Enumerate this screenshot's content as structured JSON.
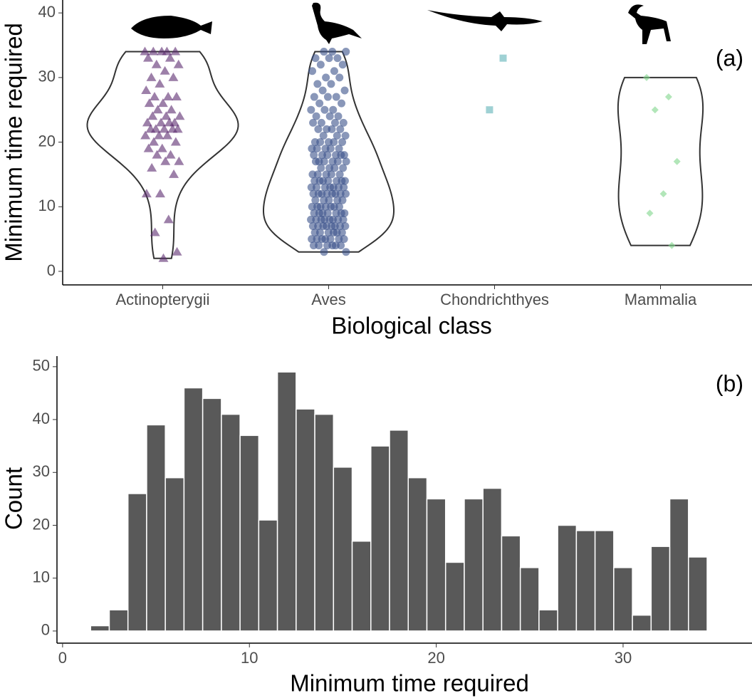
{
  "chart_data": [
    {
      "type": "violin-jitter",
      "x_label": "Biological class",
      "y_label": "Minimum time required",
      "annotation": "(a)",
      "categories": [
        "Actinopterygii",
        "Aves",
        "Chondrichthyes",
        "Mammalia"
      ],
      "ylim": [
        -2.1,
        42
      ],
      "yticks": [
        0,
        10,
        20,
        30,
        40
      ],
      "series": [
        {
          "name": "Actinopterygii",
          "color": "#5b2c6f",
          "marker": "triangle",
          "values": [
            34,
            34,
            34,
            34,
            34,
            33,
            33,
            32,
            32,
            31,
            30,
            30,
            29,
            28,
            27,
            27,
            27,
            26,
            26,
            25,
            25,
            24,
            24,
            24,
            23,
            23,
            23,
            23,
            22,
            22,
            22,
            22,
            22,
            21,
            21,
            21,
            20,
            20,
            19,
            19,
            18,
            18,
            17,
            17,
            16,
            15,
            12,
            12,
            8,
            6,
            3,
            2
          ]
        },
        {
          "name": "Aves",
          "color": "#3b528b",
          "marker": "circle",
          "values": [
            3,
            3,
            4,
            4,
            4,
            4,
            4,
            4,
            5,
            5,
            5,
            5,
            5,
            5,
            5,
            6,
            6,
            6,
            6,
            6,
            6,
            7,
            7,
            7,
            7,
            7,
            7,
            7,
            7,
            8,
            8,
            8,
            8,
            8,
            8,
            8,
            8,
            9,
            9,
            9,
            9,
            9,
            9,
            9,
            10,
            10,
            10,
            10,
            10,
            10,
            10,
            11,
            11,
            11,
            11,
            11,
            12,
            12,
            12,
            12,
            12,
            12,
            12,
            12,
            13,
            13,
            13,
            13,
            13,
            13,
            13,
            14,
            14,
            14,
            14,
            14,
            14,
            14,
            15,
            15,
            15,
            15,
            15,
            16,
            16,
            16,
            16,
            17,
            17,
            17,
            17,
            17,
            17,
            18,
            18,
            18,
            18,
            18,
            18,
            19,
            19,
            19,
            19,
            19,
            20,
            20,
            20,
            20,
            20,
            21,
            21,
            21,
            22,
            22,
            22,
            22,
            23,
            23,
            23,
            23,
            24,
            24,
            24,
            25,
            25,
            25,
            26,
            26,
            27,
            27,
            27,
            28,
            28,
            29,
            29,
            30,
            30,
            31,
            31,
            32,
            32,
            33,
            33,
            33,
            34,
            34,
            34
          ]
        },
        {
          "name": "Chondrichthyes",
          "color": "#5fb3b8",
          "marker": "square",
          "values": [
            33,
            25
          ]
        },
        {
          "name": "Mammalia",
          "color": "#7fd68a",
          "marker": "diamond",
          "values": [
            30,
            27,
            25,
            17,
            12,
            9,
            4
          ]
        }
      ]
    },
    {
      "type": "histogram",
      "x_label": "Minimum time required",
      "y_label": "Count",
      "annotation": "(b)",
      "color": "#595959",
      "bins": [
        1.5,
        2.5,
        3.5,
        4.5,
        5.5,
        6.5,
        7.5,
        8.5,
        9.5,
        10.5,
        11.5,
        12.5,
        13.5,
        14.5,
        15.5,
        16.5,
        17.5,
        18.5,
        19.5,
        20.5,
        21.5,
        22.5,
        23.5,
        24.5,
        25.5,
        26.5,
        27.5,
        28.5,
        29.5,
        30.5,
        31.5,
        32.5,
        33.5,
        34.5
      ],
      "counts": [
        1,
        4,
        26,
        39,
        29,
        46,
        44,
        41,
        37,
        21,
        49,
        42,
        41,
        31,
        17,
        35,
        38,
        29,
        25,
        13,
        25,
        27,
        18,
        12,
        4,
        20,
        19,
        19,
        12,
        3,
        16,
        25,
        14
      ],
      "xlim": [
        -0.3,
        36.9
      ],
      "ylim": [
        -2.3,
        52
      ],
      "xticks": [
        0,
        10,
        20,
        30
      ],
      "yticks": [
        0,
        10,
        20,
        30,
        40,
        50
      ]
    }
  ]
}
